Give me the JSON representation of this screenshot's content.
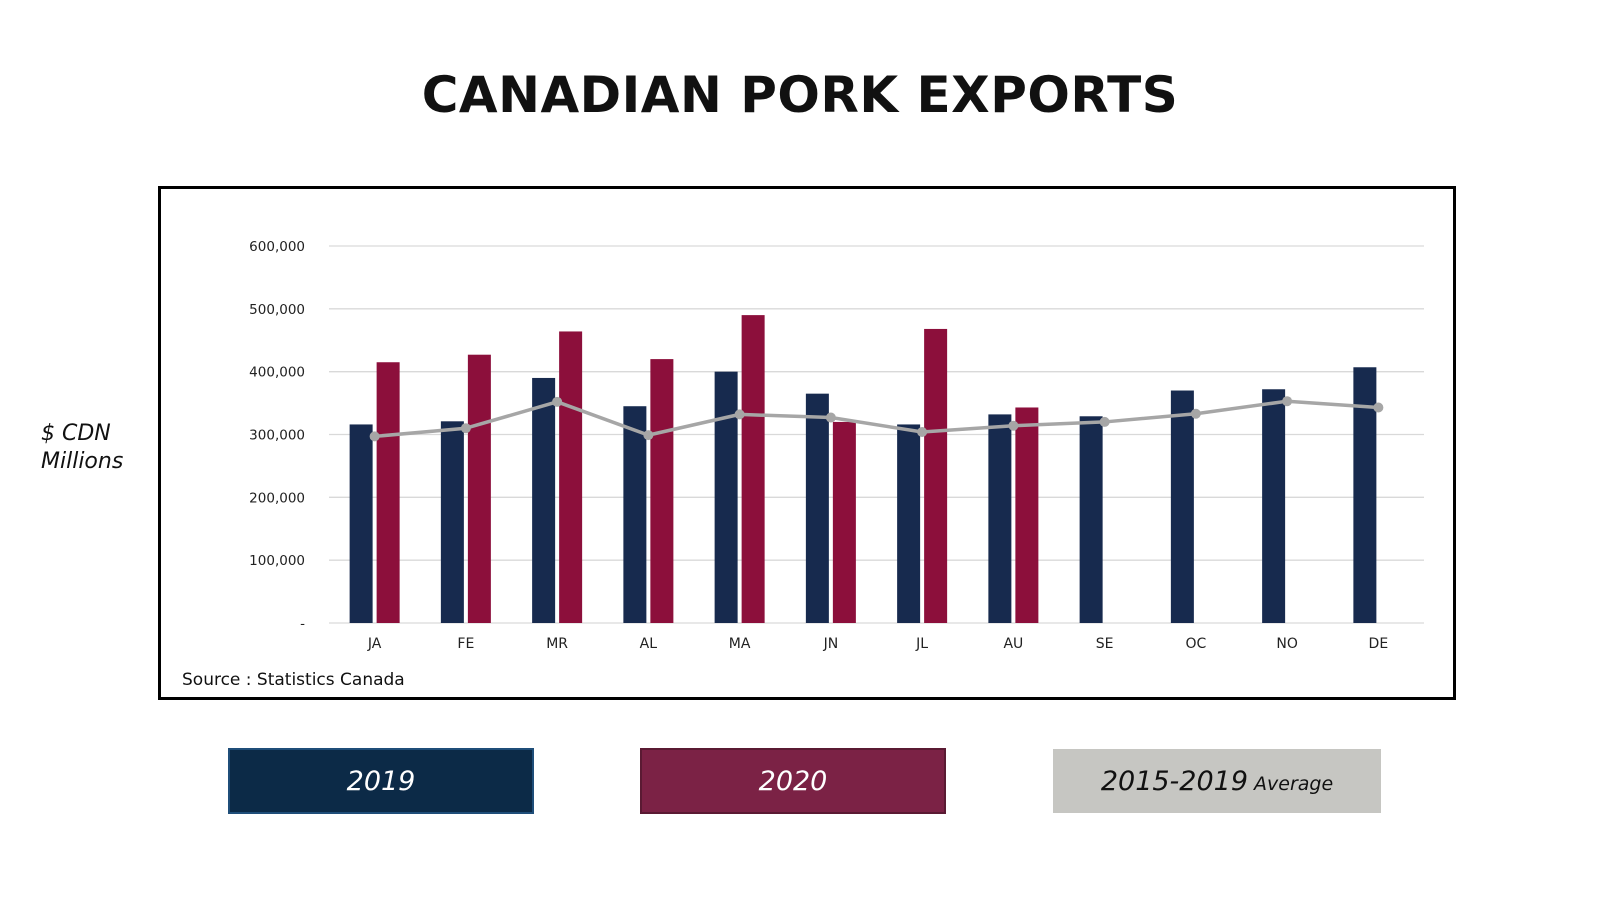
{
  "title": "CANADIAN PORK EXPORTS",
  "y_axis_label_line1": "$ CDN",
  "y_axis_label_line2": "Millions",
  "source": "Source : Statistics Canada",
  "legend": {
    "item_2019": "2019",
    "item_2020": "2020",
    "item_avg_main": "2015-2019",
    "item_avg_sub": "Average"
  },
  "colors": {
    "series_2019": "#172a4e",
    "series_2020": "#8c0f3b",
    "series_avg": "#a6a6a6",
    "legend_2019": "#0c2a47",
    "legend_2020": "#7b2245",
    "legend_avg": "#c6c6c2",
    "gridline": "#d9d9d9"
  },
  "chart_data": {
    "type": "bar",
    "categories": [
      "JA",
      "FE",
      "MR",
      "AL",
      "MA",
      "JN",
      "JL",
      "AU",
      "SE",
      "OC",
      "NO",
      "DE"
    ],
    "ylim": [
      0,
      600000
    ],
    "yticks": [
      0,
      100000,
      200000,
      300000,
      400000,
      500000,
      600000
    ],
    "ytick_labels": [
      "-",
      "100,000",
      "200,000",
      "300,000",
      "400,000",
      "500,000",
      "600,000"
    ],
    "grid": true,
    "legend_position": "bottom",
    "series": [
      {
        "name": "2019",
        "type": "bar",
        "values": [
          316000,
          321000,
          390000,
          345000,
          400000,
          365000,
          316000,
          332000,
          329000,
          370000,
          372000,
          407000
        ]
      },
      {
        "name": "2020",
        "type": "bar",
        "values": [
          415000,
          427000,
          464000,
          420000,
          490000,
          320000,
          468000,
          343000,
          null,
          null,
          null,
          null
        ]
      },
      {
        "name": "2015-2019 Average",
        "type": "line",
        "values": [
          297000,
          310000,
          352000,
          299000,
          332000,
          327000,
          304000,
          314000,
          320000,
          333000,
          353000,
          343000
        ]
      }
    ]
  }
}
